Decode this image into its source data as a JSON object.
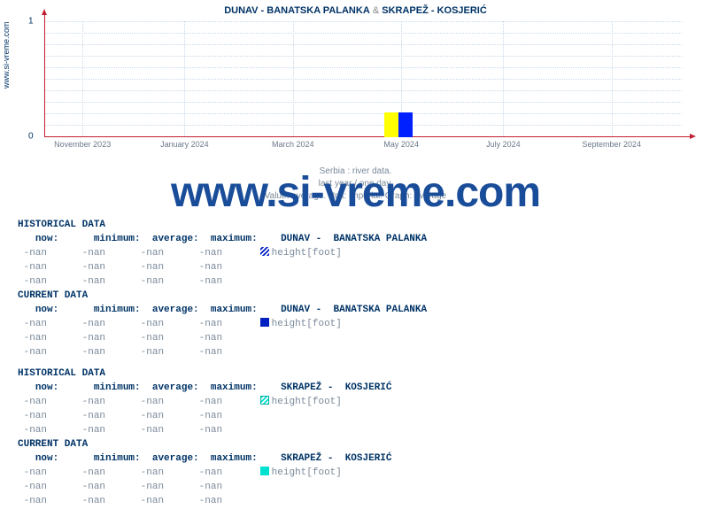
{
  "title_parts": {
    "left": "DUNAV -  BANATSKA PALANKA",
    "sep": " & ",
    "right": " SKRAPEŽ -  KOSJERIĆ"
  },
  "ylabel": "www.si-vreme.com",
  "watermark": "www.si-vreme.com",
  "chart": {
    "type": "line",
    "background_color": "#ffffff",
    "grid_color": "#c8d8e8",
    "axis_color": "#c02030",
    "ylim": [
      0,
      1
    ],
    "yticks": [
      0,
      1
    ],
    "xticks": [
      "November 2023",
      "January 2024",
      "March 2024",
      "May 2024",
      "July 2024",
      "September 2024"
    ],
    "xtick_positions_pct": [
      6,
      22,
      39,
      56,
      72,
      89
    ],
    "legend_colors": [
      "#ffff00",
      "#0020ff"
    ]
  },
  "subtitles": {
    "line1": "Serbia : river data.",
    "line2": "last year / one day.",
    "line3": "Value: average. Unit: imperial. Graph: average"
  },
  "sections": [
    {
      "head": "HISTORICAL DATA",
      "cols": [
        "now:",
        "minimum:",
        "average:",
        "maximum:"
      ],
      "station": "DUNAV -  BANATSKA PALANKA",
      "marker_style": "hatch-blue",
      "unit": "height[foot]",
      "rows": [
        [
          "-nan",
          "-nan",
          "-nan",
          "-nan"
        ],
        [
          "-nan",
          "-nan",
          "-nan",
          "-nan"
        ],
        [
          "-nan",
          "-nan",
          "-nan",
          "-nan"
        ]
      ]
    },
    {
      "head": "CURRENT DATA",
      "cols": [
        "now:",
        "minimum:",
        "average:",
        "maximum:"
      ],
      "station": "DUNAV -  BANATSKA PALANKA",
      "marker_style": "solid-blue",
      "unit": "height[foot]",
      "rows": [
        [
          "-nan",
          "-nan",
          "-nan",
          "-nan"
        ],
        [
          "-nan",
          "-nan",
          "-nan",
          "-nan"
        ],
        [
          "-nan",
          "-nan",
          "-nan",
          "-nan"
        ]
      ]
    },
    {
      "head": "HISTORICAL DATA",
      "cols": [
        "now:",
        "minimum:",
        "average:",
        "maximum:"
      ],
      "station": "SKRAPEŽ -  KOSJERIĆ",
      "marker_style": "hatch-cyan",
      "unit": "height[foot]",
      "rows": [
        [
          "-nan",
          "-nan",
          "-nan",
          "-nan"
        ],
        [
          "-nan",
          "-nan",
          "-nan",
          "-nan"
        ],
        [
          "-nan",
          "-nan",
          "-nan",
          "-nan"
        ]
      ]
    },
    {
      "head": "CURRENT DATA",
      "cols": [
        "now:",
        "minimum:",
        "average:",
        "maximum:"
      ],
      "station": "SKRAPEŽ -  KOSJERIĆ",
      "marker_style": "solid-cyan",
      "unit": "height[foot]",
      "rows": [
        [
          "-nan",
          "-nan",
          "-nan",
          "-nan"
        ],
        [
          "-nan",
          "-nan",
          "-nan",
          "-nan"
        ],
        [
          "-nan",
          "-nan",
          "-nan",
          "-nan"
        ]
      ]
    }
  ]
}
